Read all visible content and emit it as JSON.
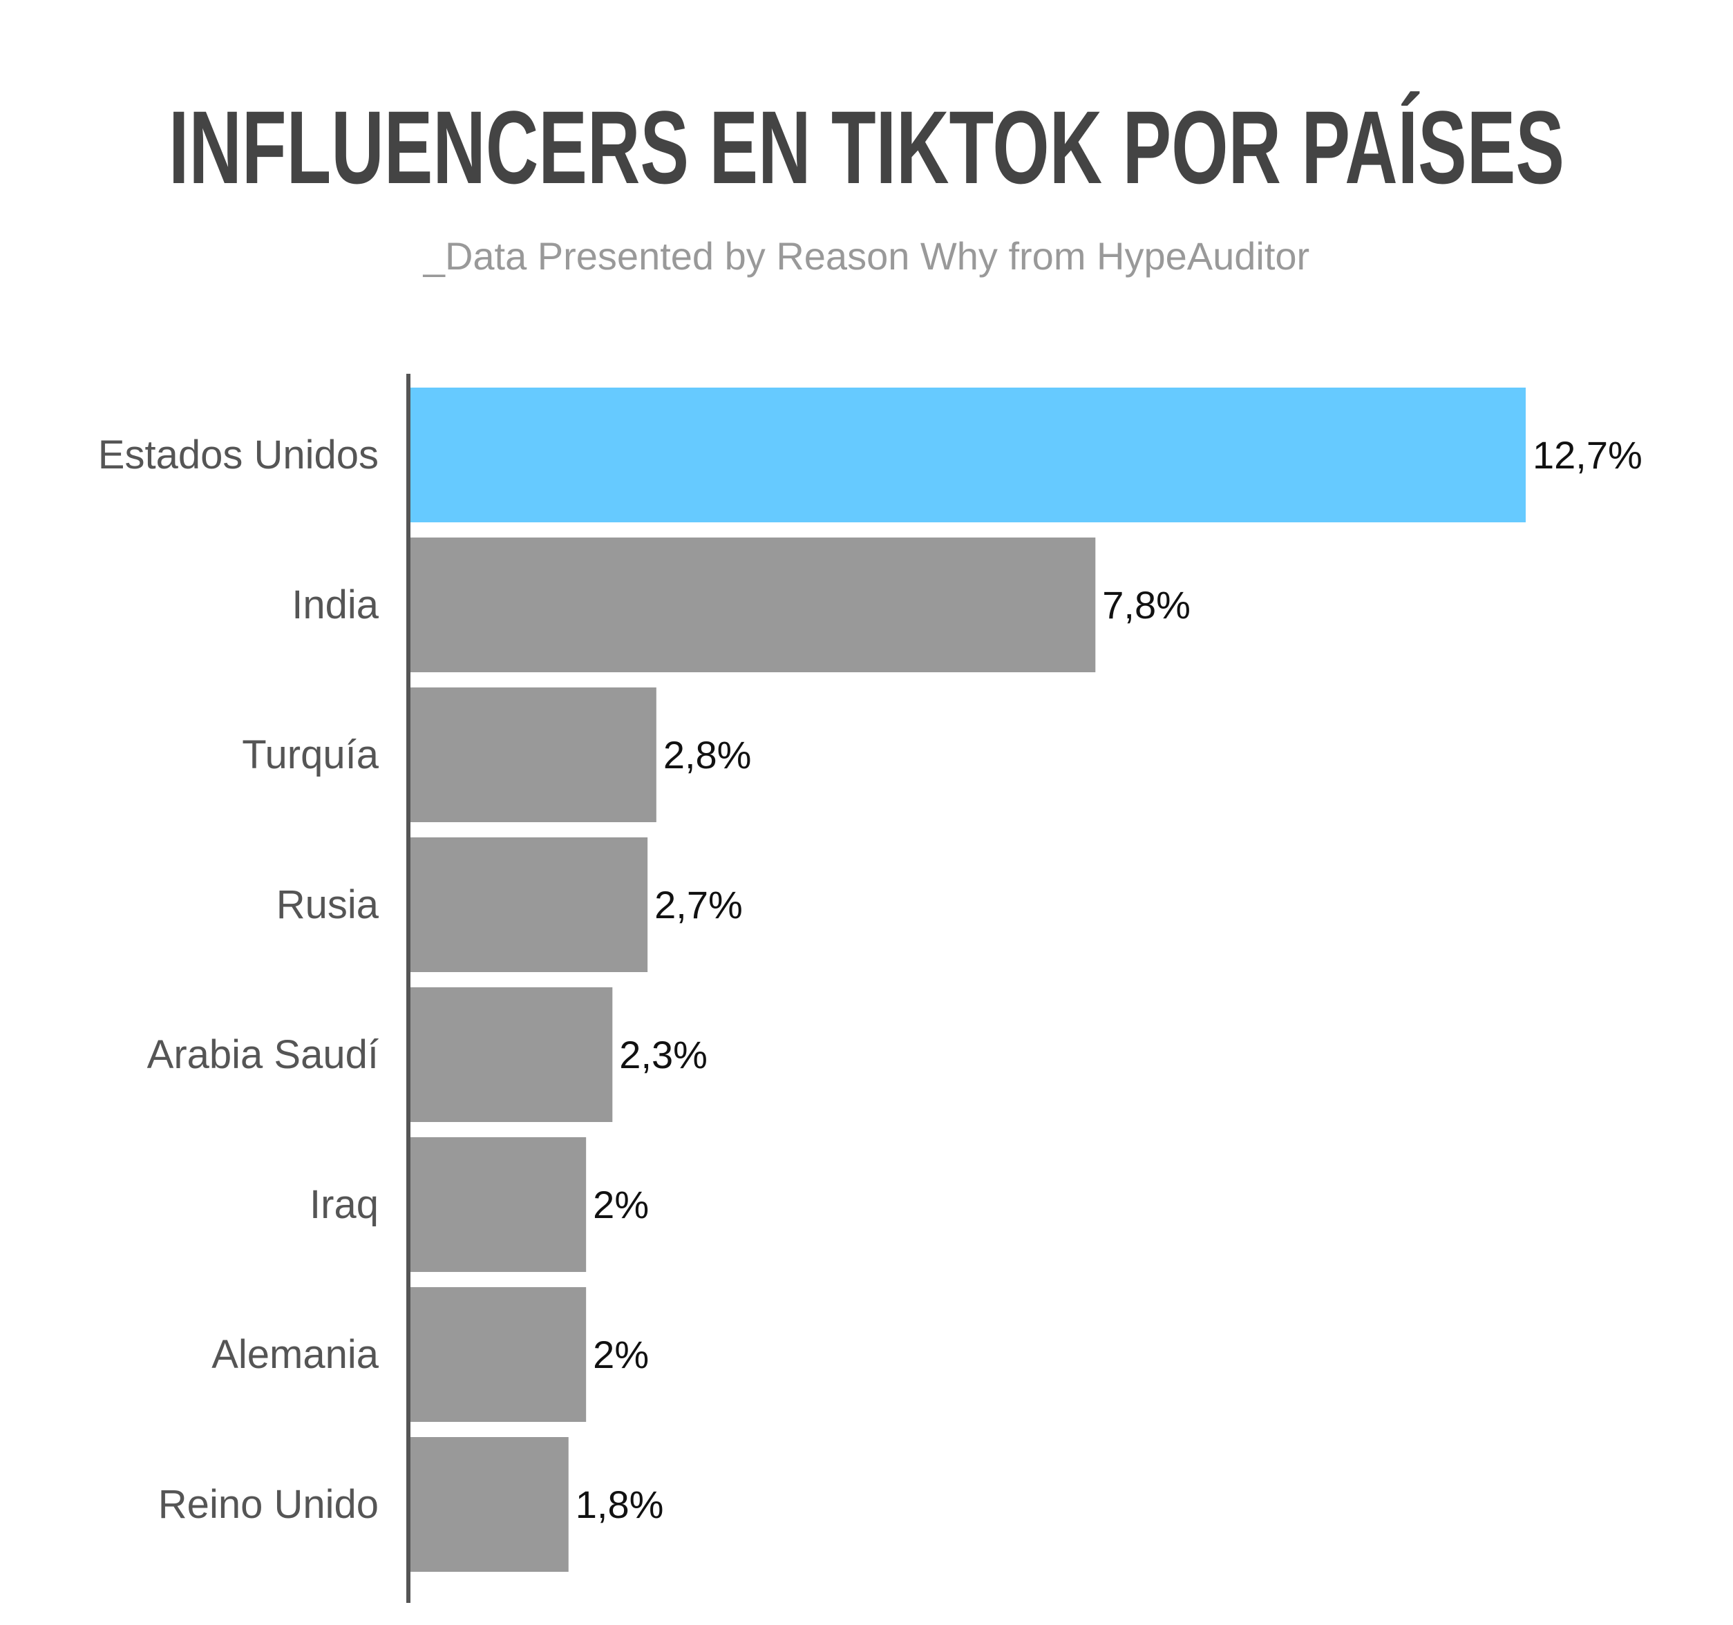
{
  "chart_data": {
    "type": "bar",
    "orientation": "horizontal",
    "title": "INFLUENCERS EN TIKTOK POR PAÍSES",
    "subtitle": "_Data Presented by Reason Why from HypeAuditor",
    "categories": [
      "Estados Unidos",
      "India",
      "Turquía",
      "Rusia",
      "Arabia Saudí",
      "Iraq",
      "Alemania",
      "Reino Unido"
    ],
    "values": [
      12.7,
      7.8,
      2.8,
      2.7,
      2.3,
      2.0,
      2.0,
      1.8
    ],
    "value_labels": [
      "12,7%",
      "7,8%",
      "2,8%",
      "2,7%",
      "2,3%",
      "2%",
      "2%",
      "1,8%"
    ],
    "unit": "%",
    "xlim": [
      0,
      12.7
    ],
    "grid": false,
    "legend": "none",
    "colors": {
      "highlight": "#66CAFF",
      "bar": "#999999",
      "axis": "#555555",
      "title": "#444444",
      "subtitle": "#999999",
      "category_text": "#555555",
      "value_text": "#111111"
    },
    "highlight_index": 0
  }
}
